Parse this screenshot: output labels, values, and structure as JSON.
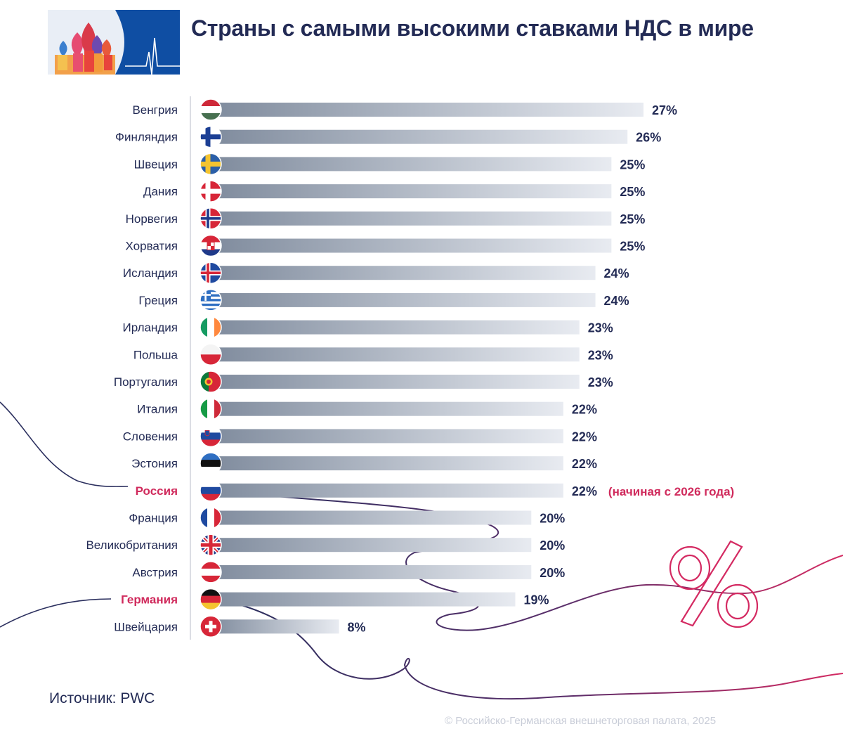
{
  "header": {
    "title": "Страны с самыми высокими ставками НДС в мире"
  },
  "chart_data": {
    "type": "bar",
    "orientation": "horizontal",
    "title": "Страны с самыми высокими ставками НДС в мире",
    "value_suffix": "%",
    "xlim": [
      0,
      27
    ],
    "categories": [
      "Венгрия",
      "Финляндия",
      "Швеция",
      "Дания",
      "Норвегия",
      "Хорватия",
      "Исландия",
      "Греция",
      "Ирландия",
      "Польша",
      "Португалия",
      "Италия",
      "Словения",
      "Эстония",
      "Россия",
      "Франция",
      "Великобритания",
      "Австрия",
      "Германия",
      "Швейцария"
    ],
    "values": [
      27,
      26,
      25,
      25,
      25,
      25,
      24,
      24,
      23,
      23,
      23,
      22,
      22,
      22,
      22,
      20,
      20,
      20,
      19,
      8
    ],
    "highlighted": [
      "Россия",
      "Германия"
    ],
    "annotations": [
      {
        "category": "Россия",
        "text": "(начиная с 2026 года)"
      }
    ],
    "flag_icons": [
      "hungary-flag",
      "finland-flag",
      "sweden-flag",
      "denmark-flag",
      "norway-flag",
      "croatia-flag",
      "iceland-flag",
      "greece-flag",
      "ireland-flag",
      "poland-flag",
      "portugal-flag",
      "italy-flag",
      "slovenia-flag",
      "estonia-flag",
      "russia-flag",
      "france-flag",
      "uk-flag",
      "austria-flag",
      "germany-flag",
      "switzerland-flag"
    ]
  },
  "colors": {
    "text_dark": "#232b55",
    "highlight": "#d02a5c",
    "bar_dark": "#7f8b9d",
    "bar_light": "#e8ebf1",
    "copyright": "#c9cdd8"
  },
  "footer": {
    "source": "Источник: PWC",
    "copyright": "© Российско-Германская внешнеторговая палата, 2025"
  }
}
